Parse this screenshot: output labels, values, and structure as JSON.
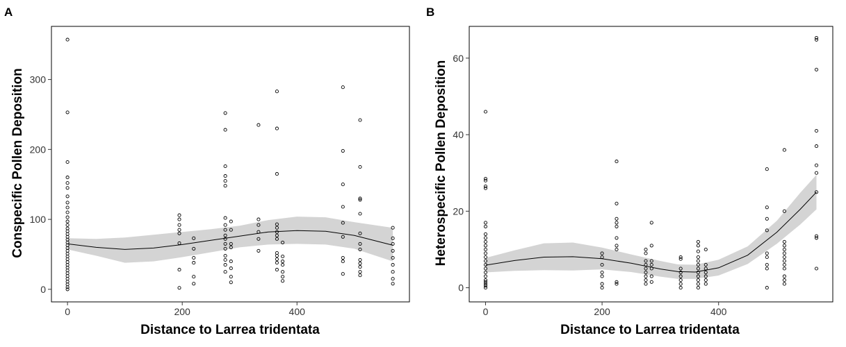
{
  "chart_data": [
    {
      "panel": "A",
      "type": "scatter",
      "xlabel": "Distance to Larrea tridentata",
      "ylabel": "Conspecific Pollen Deposition",
      "xlim": [
        -28,
        596
      ],
      "ylim": [
        -18,
        376
      ],
      "xticks": [
        0,
        200,
        400
      ],
      "yticks": [
        0,
        100,
        200,
        300
      ],
      "grid": false,
      "points": [
        [
          0,
          357
        ],
        [
          0,
          253
        ],
        [
          0,
          182
        ],
        [
          0,
          160
        ],
        [
          0,
          152
        ],
        [
          0,
          145
        ],
        [
          0,
          133
        ],
        [
          0,
          124
        ],
        [
          0,
          117
        ],
        [
          0,
          110
        ],
        [
          0,
          103
        ],
        [
          0,
          97
        ],
        [
          0,
          92
        ],
        [
          0,
          87
        ],
        [
          0,
          83
        ],
        [
          0,
          79
        ],
        [
          0,
          75
        ],
        [
          0,
          71
        ],
        [
          0,
          67
        ],
        [
          0,
          63
        ],
        [
          0,
          59
        ],
        [
          0,
          55
        ],
        [
          0,
          51
        ],
        [
          0,
          47
        ],
        [
          0,
          43
        ],
        [
          0,
          39
        ],
        [
          0,
          35
        ],
        [
          0,
          31
        ],
        [
          0,
          27
        ],
        [
          0,
          23
        ],
        [
          0,
          19
        ],
        [
          0,
          15
        ],
        [
          0,
          11
        ],
        [
          0,
          7
        ],
        [
          0,
          3
        ],
        [
          0,
          0
        ],
        [
          195,
          106
        ],
        [
          195,
          100
        ],
        [
          195,
          92
        ],
        [
          195,
          85
        ],
        [
          195,
          80
        ],
        [
          195,
          66
        ],
        [
          195,
          28
        ],
        [
          195,
          2
        ],
        [
          220,
          73
        ],
        [
          220,
          58
        ],
        [
          220,
          45
        ],
        [
          220,
          38
        ],
        [
          220,
          18
        ],
        [
          220,
          8
        ],
        [
          275,
          252
        ],
        [
          275,
          228
        ],
        [
          275,
          176
        ],
        [
          275,
          162
        ],
        [
          275,
          155
        ],
        [
          275,
          148
        ],
        [
          275,
          102
        ],
        [
          275,
          92
        ],
        [
          275,
          85
        ],
        [
          275,
          77
        ],
        [
          275,
          72
        ],
        [
          275,
          65
        ],
        [
          275,
          58
        ],
        [
          275,
          48
        ],
        [
          275,
          42
        ],
        [
          275,
          35
        ],
        [
          275,
          25
        ],
        [
          285,
          97
        ],
        [
          285,
          85
        ],
        [
          285,
          65
        ],
        [
          285,
          60
        ],
        [
          285,
          40
        ],
        [
          285,
          30
        ],
        [
          285,
          18
        ],
        [
          285,
          10
        ],
        [
          333,
          235
        ],
        [
          333,
          100
        ],
        [
          333,
          92
        ],
        [
          333,
          82
        ],
        [
          333,
          72
        ],
        [
          333,
          55
        ],
        [
          365,
          283
        ],
        [
          365,
          230
        ],
        [
          365,
          165
        ],
        [
          365,
          93
        ],
        [
          365,
          88
        ],
        [
          365,
          82
        ],
        [
          365,
          77
        ],
        [
          365,
          72
        ],
        [
          365,
          52
        ],
        [
          365,
          48
        ],
        [
          365,
          43
        ],
        [
          365,
          38
        ],
        [
          365,
          28
        ],
        [
          375,
          67
        ],
        [
          375,
          47
        ],
        [
          375,
          40
        ],
        [
          375,
          35
        ],
        [
          375,
          25
        ],
        [
          375,
          18
        ],
        [
          375,
          12
        ],
        [
          480,
          289
        ],
        [
          480,
          198
        ],
        [
          480,
          150
        ],
        [
          480,
          118
        ],
        [
          480,
          95
        ],
        [
          480,
          75
        ],
        [
          480,
          45
        ],
        [
          480,
          40
        ],
        [
          480,
          22
        ],
        [
          510,
          242
        ],
        [
          510,
          175
        ],
        [
          510,
          130
        ],
        [
          510,
          128
        ],
        [
          510,
          108
        ],
        [
          510,
          80
        ],
        [
          510,
          65
        ],
        [
          510,
          57
        ],
        [
          510,
          42
        ],
        [
          510,
          37
        ],
        [
          510,
          32
        ],
        [
          510,
          25
        ],
        [
          510,
          20
        ],
        [
          567,
          88
        ],
        [
          567,
          73
        ],
        [
          567,
          65
        ],
        [
          567,
          55
        ],
        [
          567,
          45
        ],
        [
          567,
          35
        ],
        [
          567,
          25
        ],
        [
          567,
          15
        ],
        [
          567,
          8
        ]
      ],
      "trend": [
        [
          0,
          65
        ],
        [
          50,
          60
        ],
        [
          100,
          57
        ],
        [
          150,
          59
        ],
        [
          200,
          64
        ],
        [
          250,
          70
        ],
        [
          300,
          76
        ],
        [
          350,
          82
        ],
        [
          400,
          84
        ],
        [
          450,
          83
        ],
        [
          500,
          77
        ],
        [
          567,
          63
        ]
      ],
      "band_upper": [
        [
          0,
          73
        ],
        [
          50,
          72
        ],
        [
          100,
          74
        ],
        [
          150,
          78
        ],
        [
          200,
          82
        ],
        [
          250,
          86
        ],
        [
          300,
          91
        ],
        [
          350,
          99
        ],
        [
          400,
          104
        ],
        [
          450,
          103
        ],
        [
          500,
          96
        ],
        [
          567,
          88
        ]
      ],
      "band_lower": [
        [
          0,
          57
        ],
        [
          50,
          48
        ],
        [
          100,
          38
        ],
        [
          150,
          40
        ],
        [
          200,
          46
        ],
        [
          250,
          53
        ],
        [
          300,
          60
        ],
        [
          350,
          64
        ],
        [
          400,
          65
        ],
        [
          450,
          64
        ],
        [
          500,
          58
        ],
        [
          567,
          40
        ]
      ]
    },
    {
      "panel": "B",
      "type": "scatter",
      "xlabel": "Distance to Larrea tridentata",
      "ylabel": "Heterospecific Pollen Deposition",
      "xlim": [
        -28,
        596
      ],
      "ylim": [
        -3.7,
        68.3
      ],
      "xticks": [
        0,
        200,
        400
      ],
      "yticks": [
        0,
        20,
        40,
        60
      ],
      "grid": false,
      "points": [
        [
          0,
          46
        ],
        [
          0,
          28.5
        ],
        [
          0,
          28
        ],
        [
          0,
          26.5
        ],
        [
          0,
          26
        ],
        [
          0,
          17
        ],
        [
          0,
          16
        ],
        [
          0,
          14
        ],
        [
          0,
          13
        ],
        [
          0,
          12
        ],
        [
          0,
          11
        ],
        [
          0,
          10
        ],
        [
          0,
          9
        ],
        [
          0,
          8
        ],
        [
          0,
          7
        ],
        [
          0,
          6
        ],
        [
          0,
          5
        ],
        [
          0,
          4
        ],
        [
          0,
          3
        ],
        [
          0,
          2
        ],
        [
          0,
          1.5
        ],
        [
          0,
          1
        ],
        [
          0,
          0.5
        ],
        [
          0,
          0
        ],
        [
          200,
          9
        ],
        [
          200,
          8
        ],
        [
          200,
          6
        ],
        [
          200,
          4
        ],
        [
          200,
          3
        ],
        [
          200,
          1
        ],
        [
          200,
          0
        ],
        [
          225,
          33
        ],
        [
          225,
          22
        ],
        [
          225,
          18
        ],
        [
          225,
          17
        ],
        [
          225,
          16
        ],
        [
          225,
          13
        ],
        [
          225,
          11
        ],
        [
          225,
          10
        ],
        [
          225,
          1.5
        ],
        [
          225,
          1
        ],
        [
          275,
          10
        ],
        [
          275,
          9
        ],
        [
          275,
          7
        ],
        [
          275,
          6
        ],
        [
          275,
          5
        ],
        [
          275,
          4
        ],
        [
          275,
          3
        ],
        [
          275,
          2
        ],
        [
          275,
          1
        ],
        [
          285,
          17
        ],
        [
          285,
          11
        ],
        [
          285,
          7
        ],
        [
          285,
          6
        ],
        [
          285,
          5
        ],
        [
          285,
          3
        ],
        [
          285,
          1.5
        ],
        [
          335,
          8
        ],
        [
          335,
          7.5
        ],
        [
          335,
          5
        ],
        [
          335,
          4
        ],
        [
          335,
          3
        ],
        [
          335,
          2
        ],
        [
          335,
          1
        ],
        [
          335,
          0
        ],
        [
          365,
          12
        ],
        [
          365,
          11
        ],
        [
          365,
          9.5
        ],
        [
          365,
          8
        ],
        [
          365,
          7
        ],
        [
          365,
          6
        ],
        [
          365,
          5
        ],
        [
          365,
          4
        ],
        [
          365,
          3
        ],
        [
          365,
          2
        ],
        [
          365,
          1
        ],
        [
          365,
          0
        ],
        [
          378,
          10
        ],
        [
          378,
          6
        ],
        [
          378,
          5
        ],
        [
          378,
          4
        ],
        [
          378,
          3
        ],
        [
          378,
          2
        ],
        [
          378,
          1
        ],
        [
          483,
          31
        ],
        [
          483,
          21
        ],
        [
          483,
          18
        ],
        [
          483,
          15
        ],
        [
          483,
          9
        ],
        [
          483,
          8
        ],
        [
          483,
          6
        ],
        [
          483,
          5
        ],
        [
          483,
          0
        ],
        [
          513,
          36
        ],
        [
          513,
          20
        ],
        [
          513,
          12
        ],
        [
          513,
          11
        ],
        [
          513,
          10
        ],
        [
          513,
          9
        ],
        [
          513,
          8
        ],
        [
          513,
          7
        ],
        [
          513,
          6
        ],
        [
          513,
          5
        ],
        [
          513,
          3
        ],
        [
          513,
          2
        ],
        [
          513,
          1
        ],
        [
          568,
          65.3
        ],
        [
          568,
          64.8
        ],
        [
          568,
          57
        ],
        [
          568,
          41
        ],
        [
          568,
          37
        ],
        [
          568,
          32
        ],
        [
          568,
          30
        ],
        [
          568,
          25
        ],
        [
          568,
          13.5
        ],
        [
          568,
          13
        ],
        [
          568,
          5
        ]
      ],
      "trend": [
        [
          0,
          5.9
        ],
        [
          50,
          7.1
        ],
        [
          100,
          8.0
        ],
        [
          150,
          8.1
        ],
        [
          200,
          7.6
        ],
        [
          250,
          6.4
        ],
        [
          300,
          4.9
        ],
        [
          330,
          4.2
        ],
        [
          360,
          4.1
        ],
        [
          400,
          5.2
        ],
        [
          450,
          8.5
        ],
        [
          500,
          14.5
        ],
        [
          540,
          20.5
        ],
        [
          568,
          25
        ]
      ],
      "band_upper": [
        [
          0,
          7.8
        ],
        [
          50,
          9.8
        ],
        [
          100,
          11.6
        ],
        [
          150,
          11.8
        ],
        [
          200,
          10.5
        ],
        [
          250,
          8.7
        ],
        [
          300,
          7.0
        ],
        [
          330,
          6.1
        ],
        [
          360,
          6.0
        ],
        [
          400,
          7.3
        ],
        [
          450,
          10.8
        ],
        [
          500,
          17.5
        ],
        [
          540,
          24.8
        ],
        [
          568,
          29.5
        ]
      ],
      "band_lower": [
        [
          0,
          4.0
        ],
        [
          50,
          4.4
        ],
        [
          100,
          4.6
        ],
        [
          150,
          4.5
        ],
        [
          200,
          4.8
        ],
        [
          250,
          4.1
        ],
        [
          300,
          2.9
        ],
        [
          330,
          2.3
        ],
        [
          360,
          2.3
        ],
        [
          400,
          3.2
        ],
        [
          450,
          6.2
        ],
        [
          500,
          11.5
        ],
        [
          540,
          16.5
        ],
        [
          568,
          20.5
        ]
      ]
    }
  ]
}
